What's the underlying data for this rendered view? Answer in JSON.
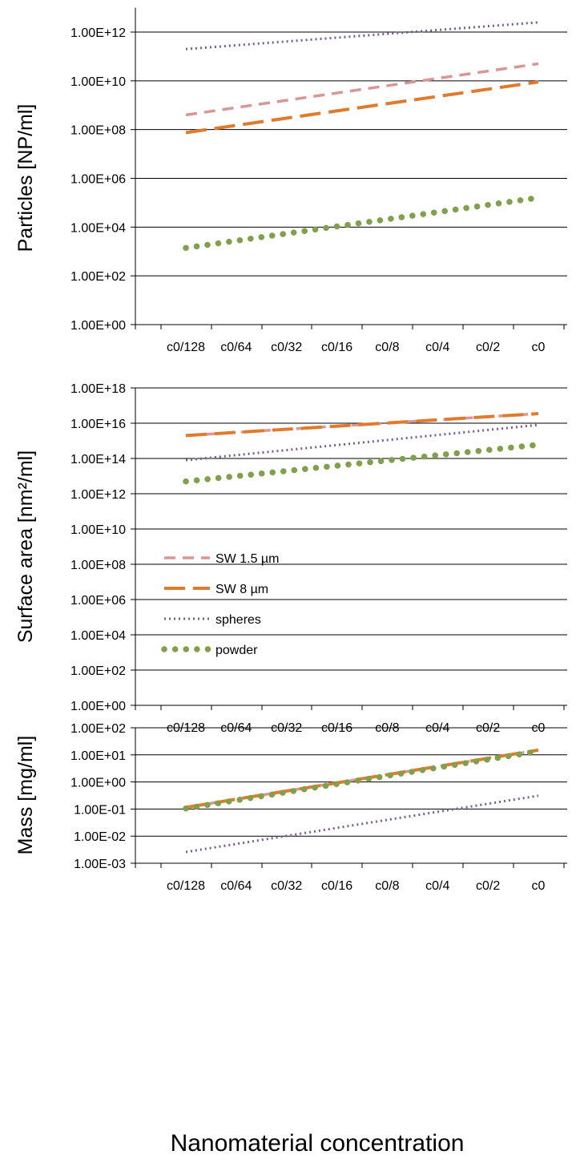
{
  "figure": {
    "xlabel": "Nanomaterial concentration"
  },
  "series_styles": {
    "SW 1.5 µm": {
      "color": "#d99694",
      "dash": "14,9",
      "width": 3.5,
      "cap": "butt"
    },
    "SW 8 µm": {
      "color": "#e07b2e",
      "dash": "26,10",
      "width": 4,
      "cap": "butt"
    },
    "spheres": {
      "color": "#7a5c94",
      "dash": "2,4",
      "width": 3,
      "cap": "butt"
    },
    "powder": {
      "color": "#80a04a",
      "dash": "0.1,13.5",
      "width": 7.5,
      "cap": "round"
    }
  },
  "chart_data": [
    {
      "type": "line",
      "ylabel": "Particles [NP/ml]",
      "yscale": "log",
      "ylim": [
        1,
        10000000000000.0
      ],
      "yticks": [
        {
          "v": 1,
          "label": "1.00E+00"
        },
        {
          "v": 100,
          "label": "1.00E+02"
        },
        {
          "v": 10000,
          "label": "1.00E+04"
        },
        {
          "v": 1000000,
          "label": "1.00E+06"
        },
        {
          "v": 100000000,
          "label": "1.00E+08"
        },
        {
          "v": 10000000000,
          "label": "1.00E+10"
        },
        {
          "v": 1000000000000,
          "label": "1.00E+12"
        }
      ],
      "categories": [
        "c0/128",
        "c0/64",
        "c0/32",
        "c0/16",
        "c0/8",
        "c0/4",
        "c0/2",
        "c0"
      ],
      "series": [
        {
          "name": "SW 1.5 µm",
          "x": [
            0,
            7
          ],
          "values": [
            400000000.0,
            50000000000.0
          ]
        },
        {
          "name": "SW 8 µm",
          "x": [
            0,
            7
          ],
          "values": [
            75000000.0,
            9000000000.0
          ]
        },
        {
          "name": "spheres",
          "x": [
            0,
            7
          ],
          "values": [
            200000000000.0,
            2500000000000.0
          ]
        },
        {
          "name": "powder",
          "x": [
            0,
            7
          ],
          "values": [
            1400.0,
            160000.0
          ]
        }
      ]
    },
    {
      "type": "line",
      "ylabel": "Surface area [nm²/ml]",
      "yscale": "log",
      "ylim": [
        1,
        1e+18
      ],
      "yticks": [
        {
          "v": 1,
          "label": "1.00E+00"
        },
        {
          "v": 100,
          "label": "1.00E+02"
        },
        {
          "v": 10000,
          "label": "1.00E+04"
        },
        {
          "v": 1000000,
          "label": "1.00E+06"
        },
        {
          "v": 100000000,
          "label": "1.00E+08"
        },
        {
          "v": 10000000000,
          "label": "1.00E+10"
        },
        {
          "v": 1000000000000,
          "label": "1.00E+12"
        },
        {
          "v": 100000000000000,
          "label": "1.00E+14"
        },
        {
          "v": 10000000000000000,
          "label": "1.00E+16"
        },
        {
          "v": 1000000000000000000,
          "label": "1.00E+18"
        }
      ],
      "categories": [
        "c0/128",
        "c0/64",
        "c0/32",
        "c0/16",
        "c0/8",
        "c0/4",
        "c0/2",
        "c0"
      ],
      "series": [
        {
          "name": "SW 1.5 µm",
          "x": [
            0,
            7
          ],
          "values": [
            2000000000000000.0,
            3.5e+16
          ]
        },
        {
          "name": "SW 8 µm",
          "x": [
            0,
            7
          ],
          "values": [
            2000000000000000.0,
            3.5e+16
          ]
        },
        {
          "name": "spheres",
          "x": [
            0,
            7
          ],
          "values": [
            80000000000000.0,
            8000000000000000.0
          ]
        },
        {
          "name": "powder",
          "x": [
            0,
            7
          ],
          "values": [
            5000000000000.0,
            600000000000000.0
          ]
        }
      ],
      "legend": {
        "position": "center-left",
        "entries": [
          "SW 1.5 µm",
          "SW 8 µm",
          "spheres",
          "powder"
        ]
      }
    },
    {
      "type": "line",
      "ylabel": "Mass [mg/ml]",
      "yscale": "log",
      "ylim": [
        0.001,
        100
      ],
      "yticks": [
        {
          "v": 0.001,
          "label": "1.00E-03"
        },
        {
          "v": 0.01,
          "label": "1.00E-02"
        },
        {
          "v": 0.1,
          "label": "1.00E-01"
        },
        {
          "v": 1,
          "label": "1.00E+00"
        },
        {
          "v": 10,
          "label": "1.00E+01"
        },
        {
          "v": 100,
          "label": "1.00E+02"
        }
      ],
      "categories": [
        "c0/128",
        "c0/64",
        "c0/32",
        "c0/16",
        "c0/8",
        "c0/4",
        "c0/2",
        "c0"
      ],
      "series": [
        {
          "name": "SW 1.5 µm",
          "x": [
            0,
            7
          ],
          "values": [
            0.115,
            15.0
          ]
        },
        {
          "name": "SW 8 µm",
          "x": [
            0,
            7
          ],
          "values": [
            0.115,
            15.0
          ]
        },
        {
          "name": "spheres",
          "x": [
            0,
            7
          ],
          "values": [
            0.0026,
            0.31
          ]
        },
        {
          "name": "powder",
          "x": [
            0,
            7
          ],
          "values": [
            0.105,
            13.5
          ]
        }
      ]
    }
  ]
}
